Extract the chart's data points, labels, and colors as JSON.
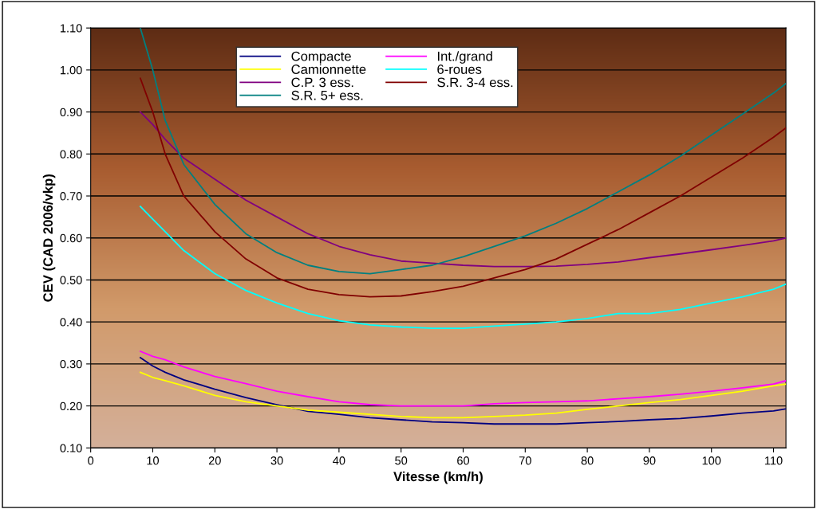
{
  "chart_data": {
    "type": "line",
    "xlabel": "Vitesse (km/h)",
    "ylabel": "CEV (CAD 2006/vkp)",
    "x": [
      8,
      10,
      12,
      15,
      20,
      25,
      30,
      35,
      40,
      45,
      50,
      55,
      60,
      65,
      70,
      75,
      80,
      85,
      90,
      95,
      100,
      105,
      110,
      112
    ],
    "series": [
      {
        "name": "Compacte",
        "color": "#000080",
        "values": [
          0.315,
          0.295,
          0.28,
          0.262,
          0.24,
          0.22,
          0.203,
          0.187,
          0.18,
          0.172,
          0.167,
          0.162,
          0.16,
          0.157,
          0.157,
          0.157,
          0.16,
          0.163,
          0.167,
          0.17,
          0.176,
          0.183,
          0.188,
          0.193
        ]
      },
      {
        "name": "Int./grand",
        "color": "#ff00ff",
        "values": [
          0.33,
          0.318,
          0.31,
          0.293,
          0.27,
          0.253,
          0.235,
          0.222,
          0.21,
          0.203,
          0.2,
          0.2,
          0.2,
          0.205,
          0.208,
          0.21,
          0.212,
          0.217,
          0.222,
          0.228,
          0.235,
          0.243,
          0.252,
          0.26
        ]
      },
      {
        "name": "Camionnette",
        "color": "#ffff00",
        "values": [
          0.28,
          0.268,
          0.26,
          0.248,
          0.225,
          0.21,
          0.2,
          0.19,
          0.185,
          0.18,
          0.175,
          0.172,
          0.172,
          0.175,
          0.178,
          0.183,
          0.192,
          0.2,
          0.208,
          0.215,
          0.225,
          0.235,
          0.248,
          0.252
        ]
      },
      {
        "name": "6-roues",
        "color": "#00ffff",
        "values": [
          0.675,
          0.645,
          0.615,
          0.57,
          0.515,
          0.475,
          0.445,
          0.42,
          0.403,
          0.393,
          0.388,
          0.385,
          0.385,
          0.39,
          0.395,
          0.4,
          0.408,
          0.42,
          0.42,
          0.43,
          0.445,
          0.46,
          0.478,
          0.49
        ]
      },
      {
        "name": "C.P. 3 ess.",
        "color": "#800080",
        "values": [
          0.9,
          0.87,
          0.835,
          0.79,
          0.74,
          0.69,
          0.65,
          0.61,
          0.58,
          0.56,
          0.545,
          0.54,
          0.535,
          0.532,
          0.532,
          0.533,
          0.537,
          0.543,
          0.553,
          0.562,
          0.572,
          0.582,
          0.593,
          0.6
        ]
      },
      {
        "name": "S.R. 3-4 ess.",
        "color": "#800000",
        "values": [
          0.98,
          0.9,
          0.8,
          0.7,
          0.615,
          0.55,
          0.505,
          0.478,
          0.465,
          0.46,
          0.462,
          0.472,
          0.485,
          0.505,
          0.525,
          0.55,
          0.585,
          0.62,
          0.66,
          0.7,
          0.745,
          0.79,
          0.84,
          0.862
        ]
      },
      {
        "name": "S.R. 5+ ess.",
        "color": "#008080",
        "values": [
          1.1,
          1.0,
          0.88,
          0.775,
          0.68,
          0.61,
          0.565,
          0.535,
          0.52,
          0.515,
          0.525,
          0.535,
          0.555,
          0.58,
          0.605,
          0.635,
          0.67,
          0.71,
          0.75,
          0.795,
          0.845,
          0.895,
          0.945,
          0.968
        ]
      }
    ],
    "xlim": [
      0,
      112
    ],
    "xticks": [
      0,
      10,
      20,
      30,
      40,
      50,
      60,
      70,
      80,
      90,
      100,
      110
    ],
    "ylim": [
      0.1,
      1.1
    ],
    "yticks": [
      {
        "value": 0.1,
        "label": "0.10"
      },
      {
        "value": 0.2,
        "label": "0.20"
      },
      {
        "value": 0.3,
        "label": "0.30"
      },
      {
        "value": 0.4,
        "label": "0.40"
      },
      {
        "value": 0.5,
        "label": "0.50"
      },
      {
        "value": 0.6,
        "label": "0.60"
      },
      {
        "value": 0.7,
        "label": "0.70"
      },
      {
        "value": 0.8,
        "label": "0.80"
      },
      {
        "value": 0.9,
        "label": "0.90"
      },
      {
        "value": 1.0,
        "label": "1.00"
      },
      {
        "value": 1.1,
        "label": "1.10"
      }
    ],
    "grid": "y",
    "legend": "top left",
    "marker": "none",
    "line_style": "solid"
  }
}
